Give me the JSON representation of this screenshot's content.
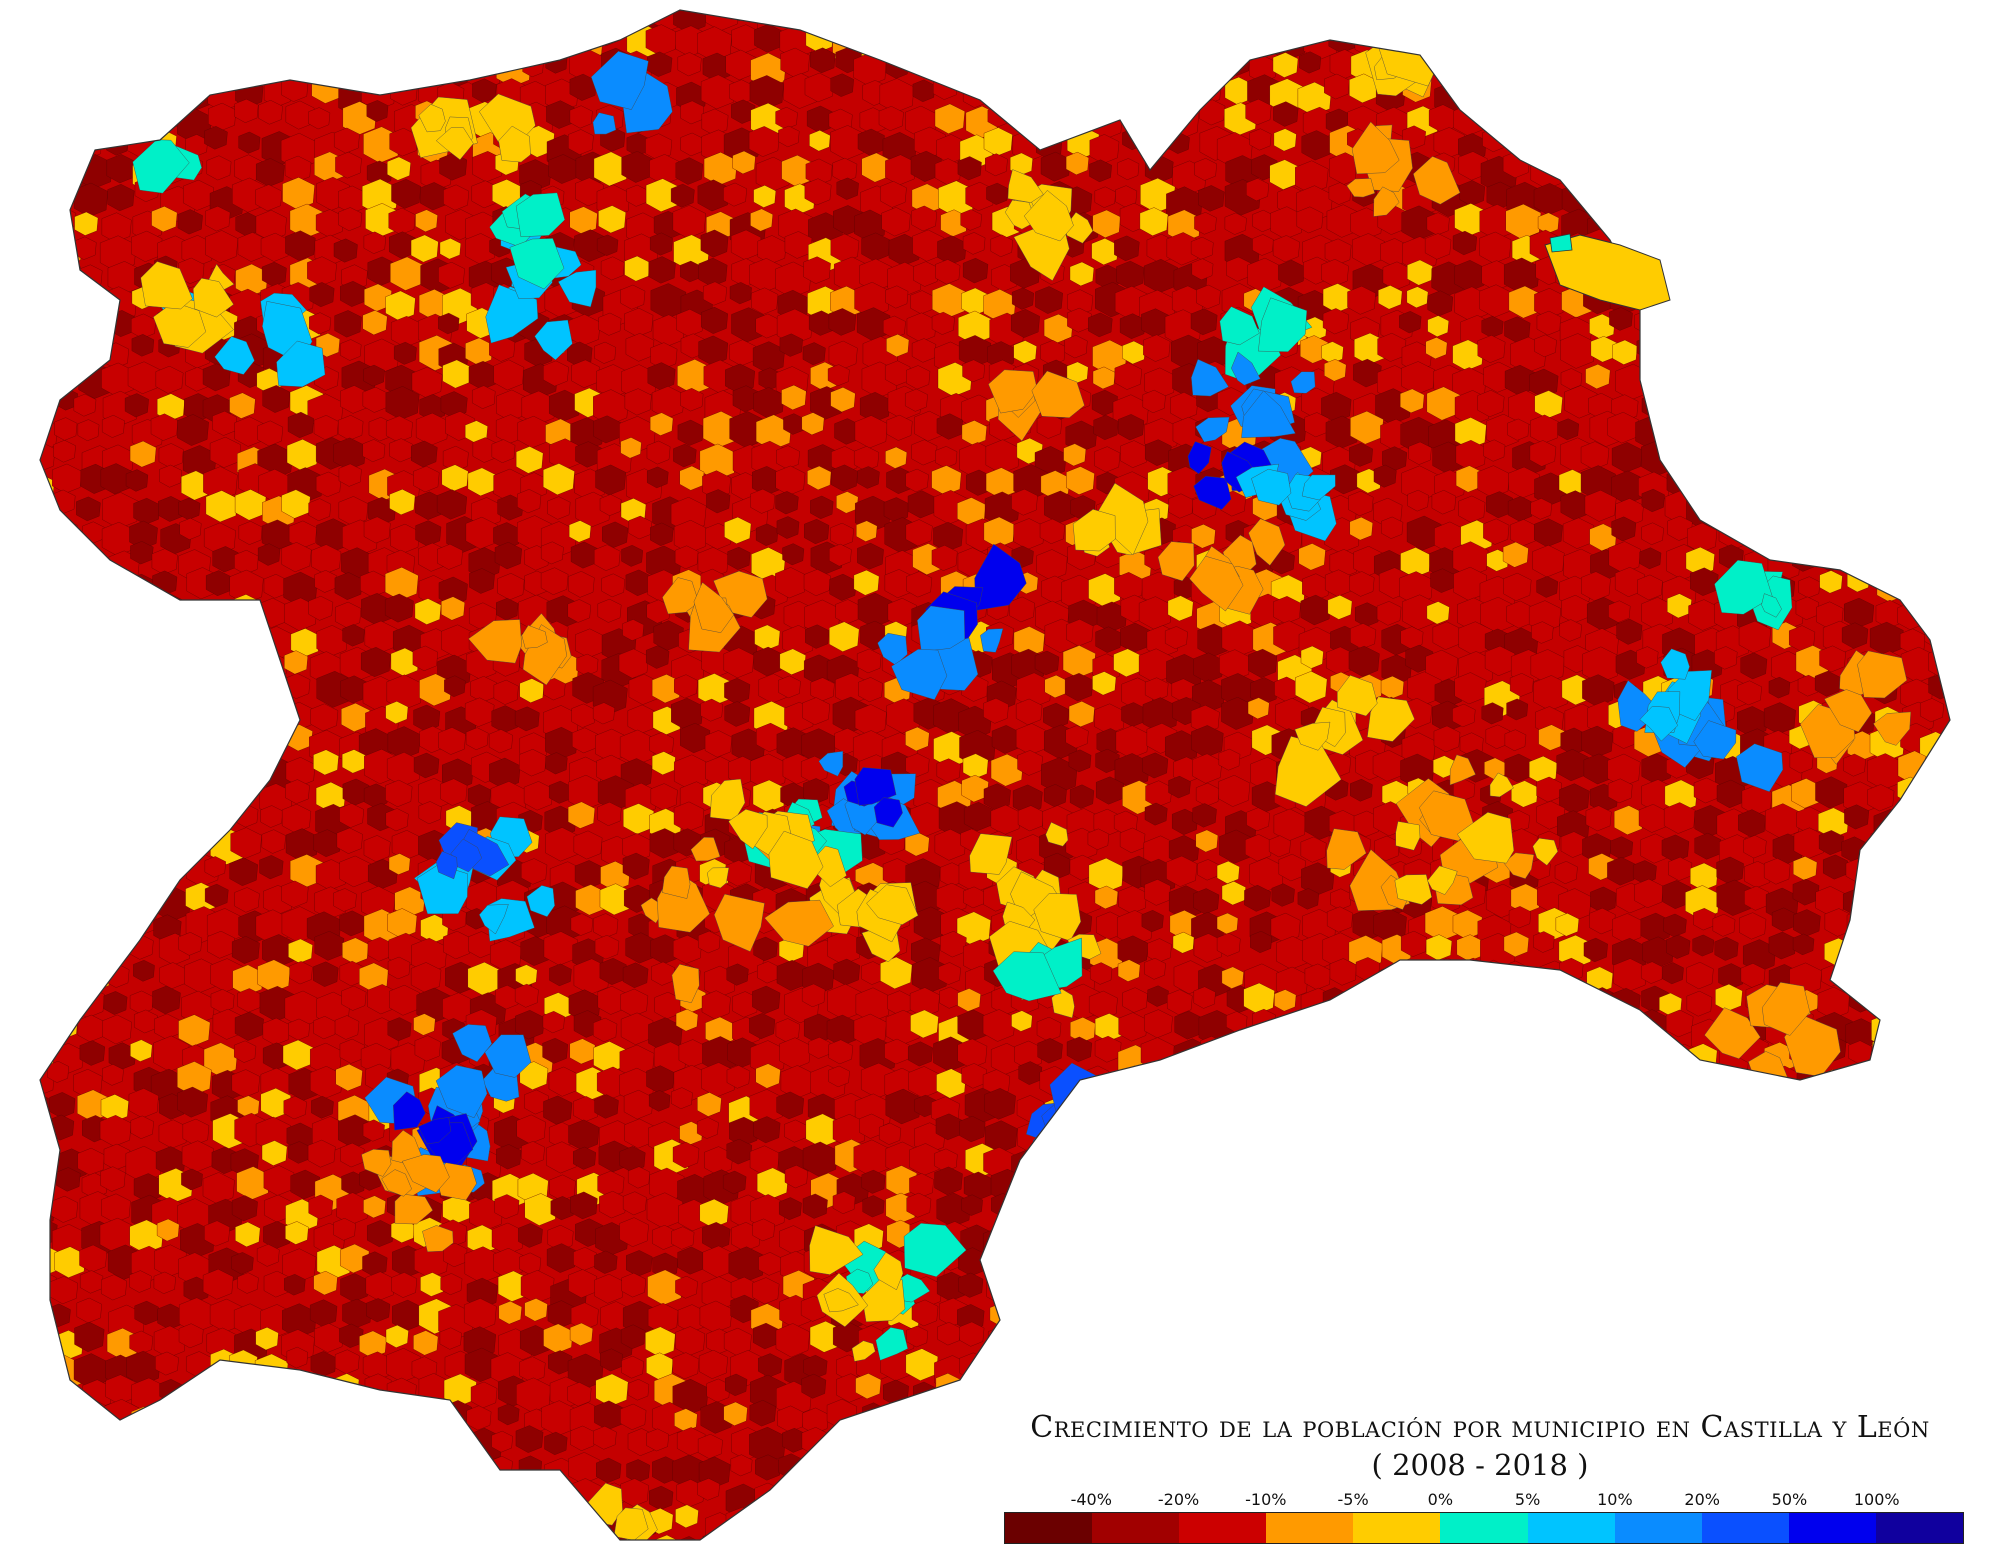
{
  "title": "Crecimiento de la población por municipio en Castilla y León",
  "subtitle": "( 2008 - 2018 )",
  "legend": {
    "labels": [
      "-40%",
      "-20%",
      "-10%",
      "-5%",
      "0%",
      "5%",
      "10%",
      "20%",
      "50%",
      "100%"
    ],
    "colors": [
      "#6b0000",
      "#a10000",
      "#cc0000",
      "#ff9a00",
      "#ffcc00",
      "#00f0c8",
      "#00c4ff",
      "#0a8cff",
      "#0a50ff",
      "#0000ee",
      "#10009e"
    ]
  },
  "map": {
    "colors": {
      "dark-red": "#8f0000",
      "red": "#c80000",
      "orange": "#ff9a00",
      "yellow": "#ffcc00",
      "turquoise": "#00f0c8",
      "light-blue": "#00c4ff",
      "blue": "#0a8cff",
      "deep-blue": "#0a50ff",
      "pure-blue": "#0000ee"
    }
  }
}
